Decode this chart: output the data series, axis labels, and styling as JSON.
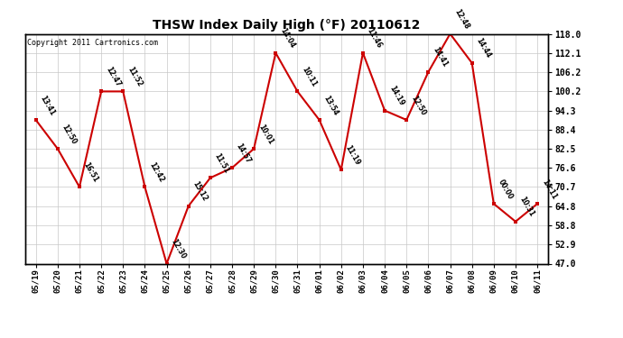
{
  "title": "THSW Index Daily High (°F) 20110612",
  "copyright": "Copyright 2011 Cartronics.com",
  "bg_color": "#ffffff",
  "line_color": "#cc0000",
  "marker_color": "#cc0000",
  "grid_color": "#c8c8c8",
  "dates": [
    "05/19",
    "05/20",
    "05/21",
    "05/22",
    "05/23",
    "05/24",
    "05/25",
    "05/26",
    "05/27",
    "05/28",
    "05/29",
    "05/30",
    "05/31",
    "06/01",
    "06/02",
    "06/03",
    "06/04",
    "06/05",
    "06/06",
    "06/07",
    "06/08",
    "06/09",
    "06/10",
    "06/11"
  ],
  "values": [
    91.4,
    82.5,
    70.7,
    100.2,
    100.2,
    70.7,
    47.0,
    64.8,
    73.5,
    76.6,
    82.5,
    112.1,
    100.2,
    91.4,
    76.0,
    112.1,
    94.3,
    91.4,
    106.2,
    118.0,
    109.0,
    65.5,
    60.0,
    65.5
  ],
  "labels": [
    "13:41",
    "12:50",
    "16:51",
    "12:47",
    "11:52",
    "12:42",
    "12:30",
    "15:12",
    "11:51",
    "14:57",
    "10:01",
    "14:04",
    "10:11",
    "13:54",
    "11:19",
    "11:46",
    "14:19",
    "12:50",
    "14:41",
    "12:48",
    "14:44",
    "00:00",
    "10:31",
    "14:11"
  ],
  "ylim_min": 47.0,
  "ylim_max": 118.0,
  "yticks": [
    47.0,
    52.9,
    58.8,
    64.8,
    70.7,
    76.6,
    82.5,
    88.4,
    94.3,
    100.2,
    106.2,
    112.1,
    118.0
  ]
}
